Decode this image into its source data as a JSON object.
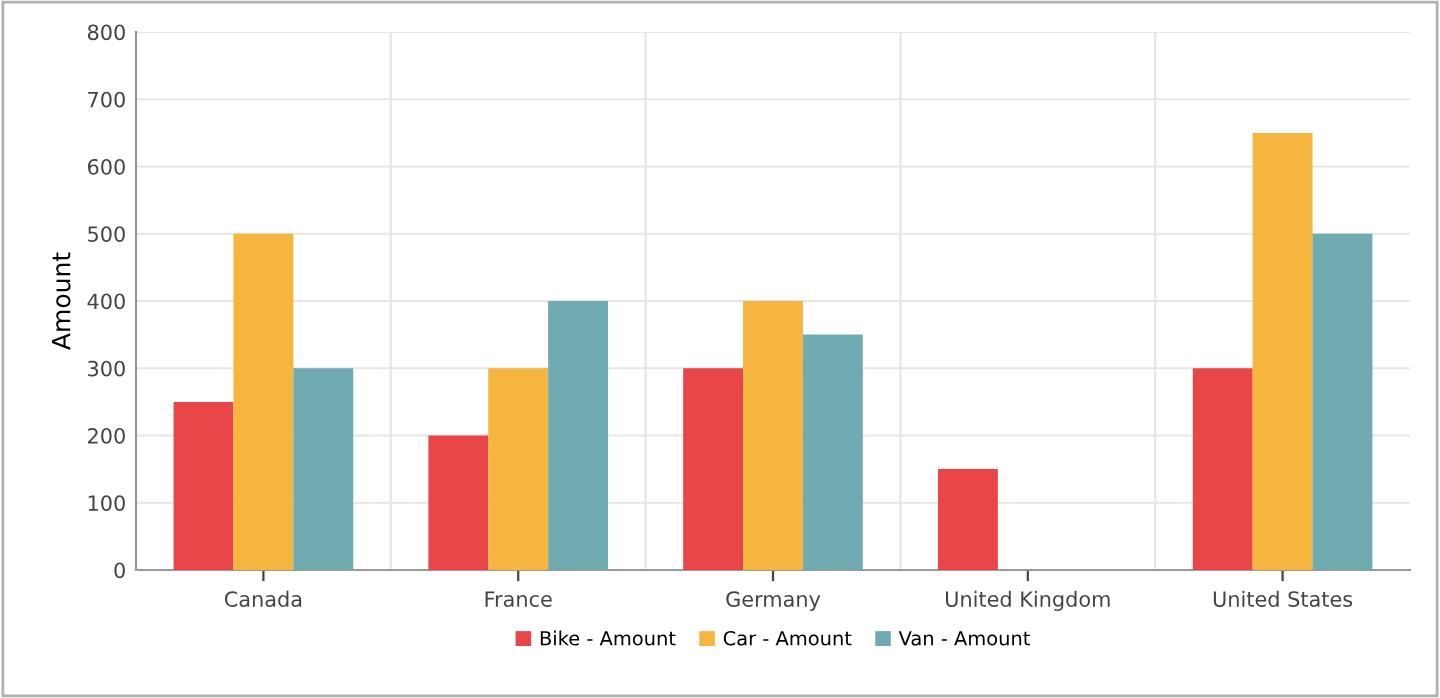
{
  "chart_data": {
    "type": "bar",
    "ylabel": "Amount",
    "categories": [
      "Canada",
      "France",
      "Germany",
      "United Kingdom",
      "United States"
    ],
    "series": [
      {
        "name": "Bike - Amount",
        "color": "#e94649",
        "values": [
          250,
          200,
          300,
          150,
          300
        ]
      },
      {
        "name": "Car - Amount",
        "color": "#f6b53f",
        "values": [
          500,
          300,
          400,
          null,
          650
        ]
      },
      {
        "name": "Van - Amount",
        "color": "#6fabb0",
        "values": [
          300,
          400,
          350,
          null,
          500
        ]
      }
    ],
    "ylim": [
      0,
      800
    ],
    "yticks": [
      0,
      100,
      200,
      300,
      400,
      500,
      600,
      700,
      800
    ],
    "grid": true,
    "legend": "bottom"
  }
}
